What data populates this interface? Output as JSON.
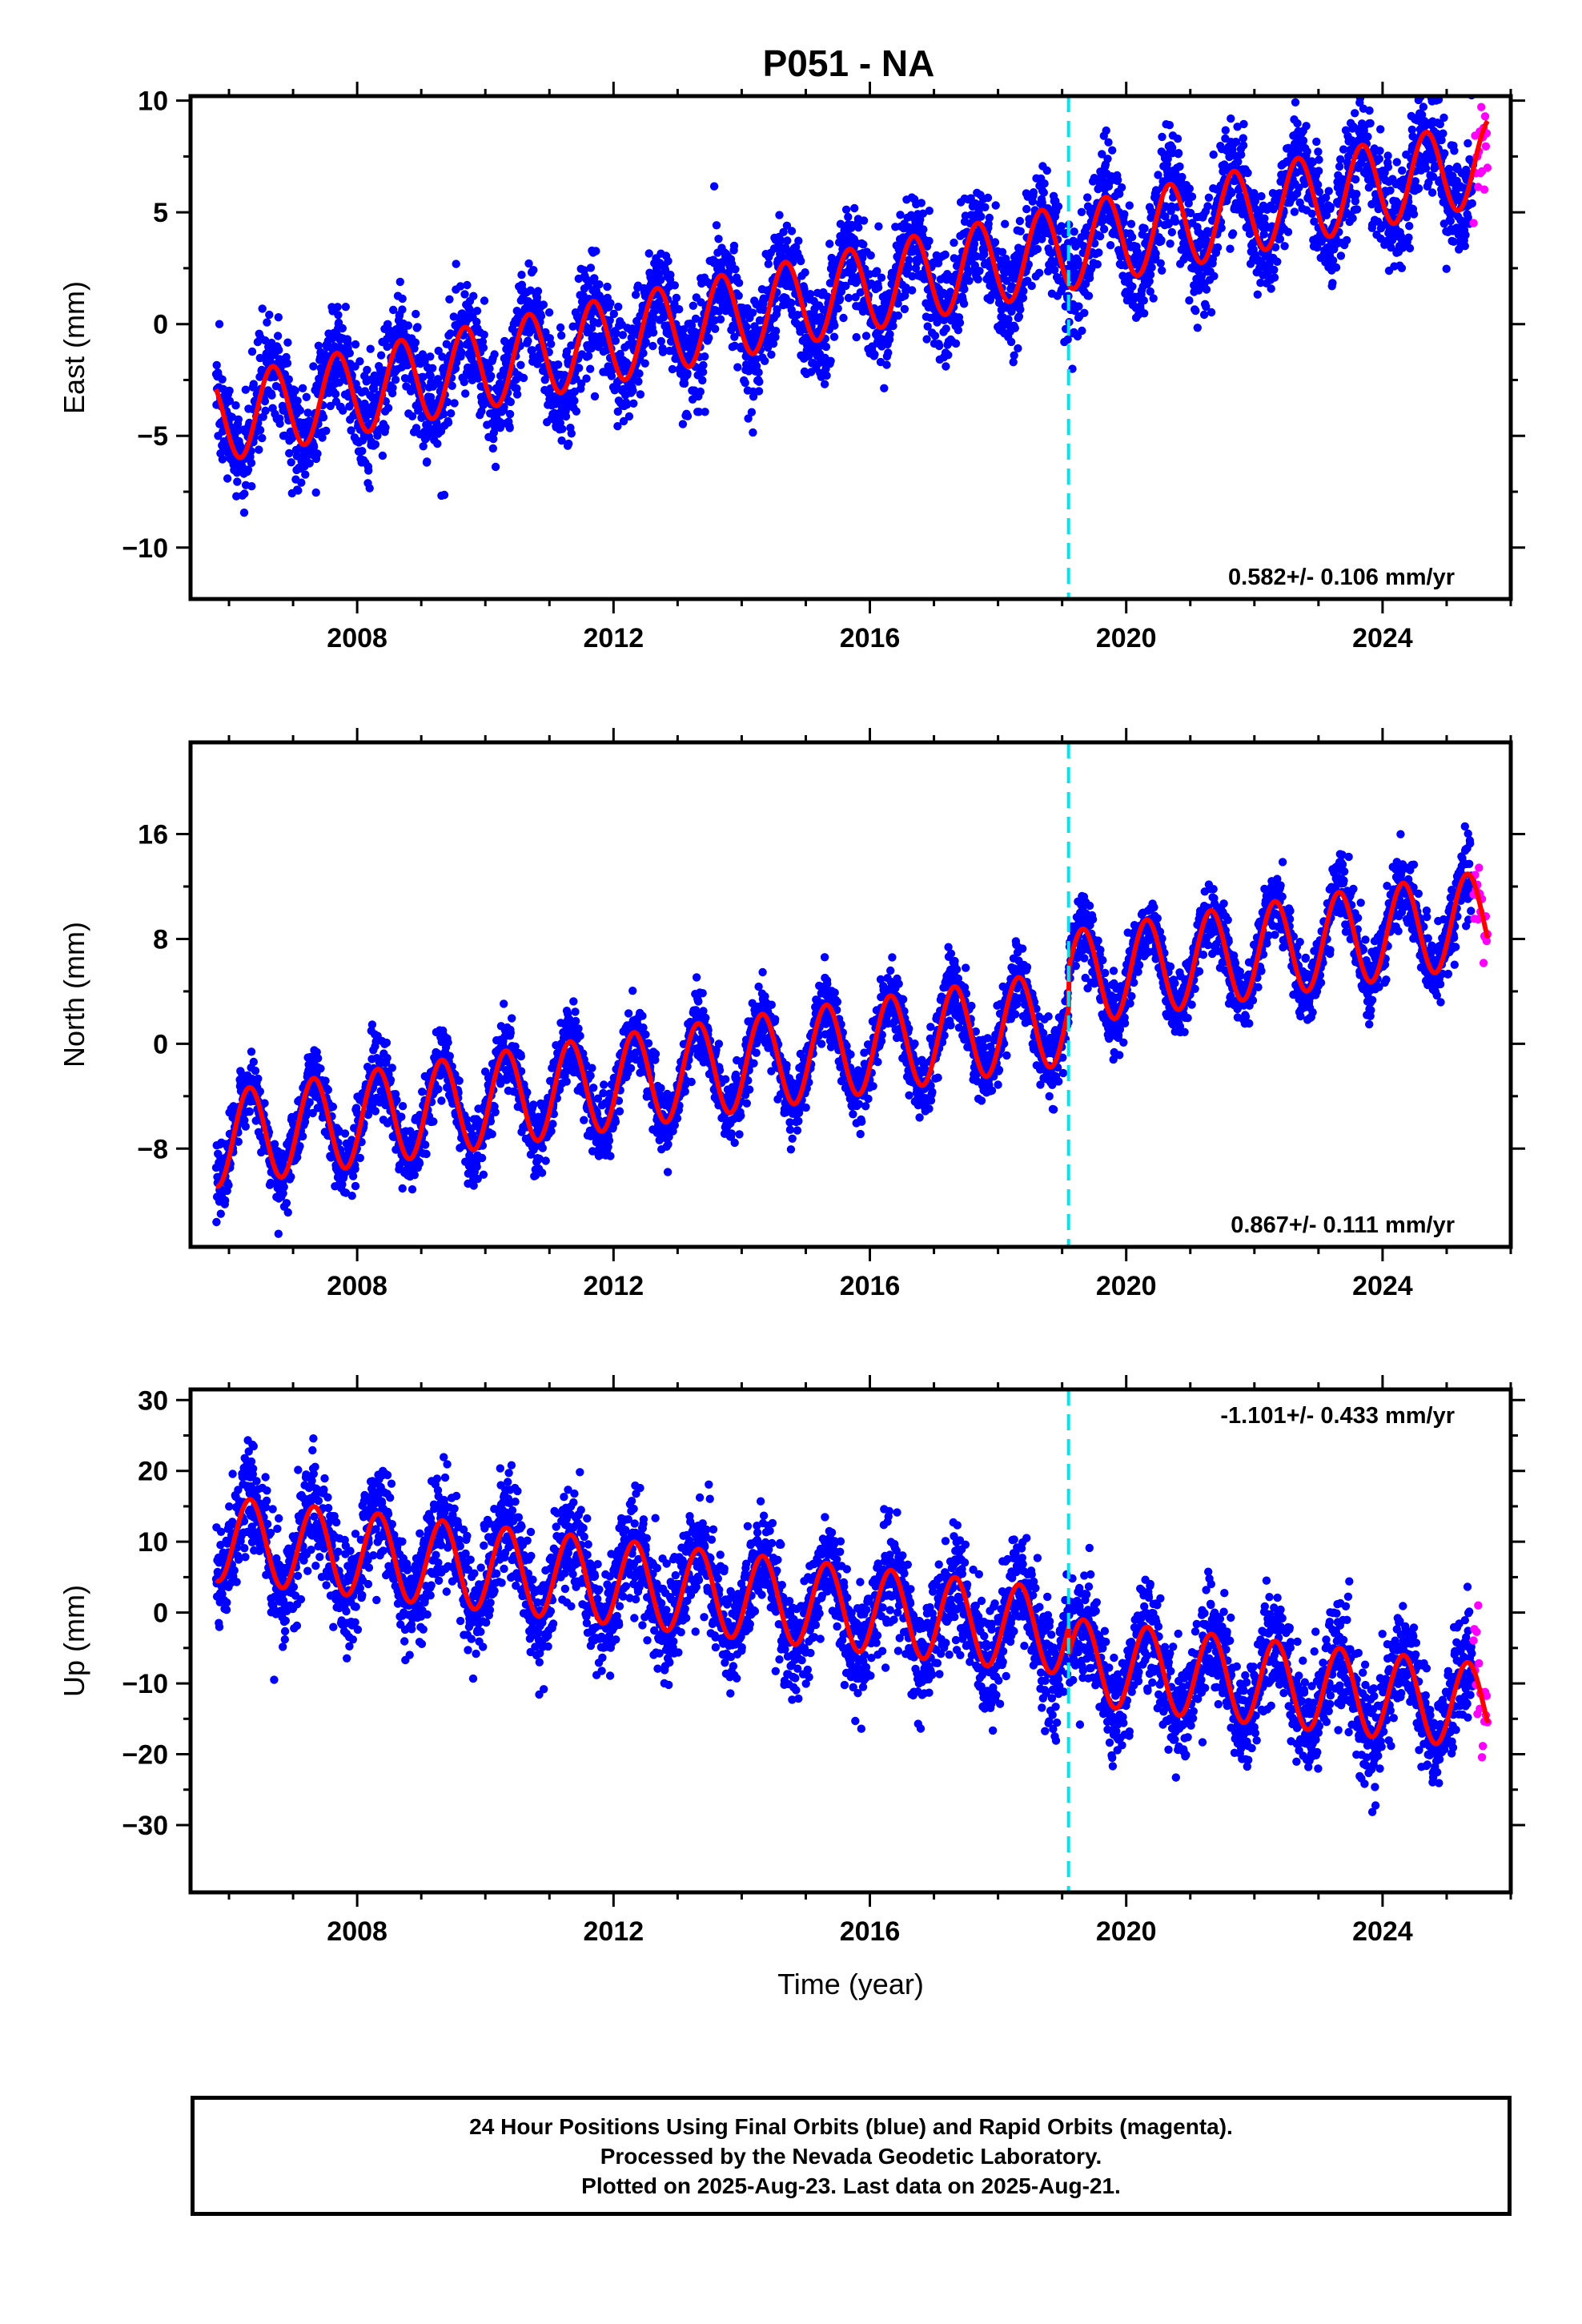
{
  "title": "P051 - NA",
  "xlabel": "Time (year)",
  "caption": {
    "line1": "24 Hour Positions Using Final Orbits (blue) and Rapid Orbits (magenta).",
    "line2": "Processed by the Nevada Geodetic Laboratory.",
    "line3": "Plotted on 2025-Aug-23. Last data on 2025-Aug-21."
  },
  "colors": {
    "final_orbits": "#0000ff",
    "rapid_orbits": "#ff00ff",
    "model_fit": "#ff0000",
    "equipment_change_line": "#00e5ee"
  },
  "chart_data": [
    {
      "type": "scatter",
      "panel": "east",
      "ylabel": "East (mm)",
      "rate_text": "0.582+/- 0.106 mm/yr",
      "rate_position": "bottom-right",
      "xlim": [
        2005.4,
        2026.0
      ],
      "ylim": [
        -12.3,
        10.2
      ],
      "xticks": [
        2008,
        2012,
        2016,
        2020,
        2024
      ],
      "yticks": [
        -10,
        -5,
        0,
        5,
        10
      ],
      "vline_x": 2019.1,
      "model": {
        "intercept": -4.3,
        "t0": 2005.8,
        "slope": 0.582,
        "amplitude": 1.9,
        "phase": 0.43
      },
      "series": [
        {
          "name": "Final Orbits",
          "color": "#0000ff",
          "x_range": [
            2005.8,
            2025.42
          ],
          "scatter_sd": 1.2
        },
        {
          "name": "Rapid Orbits",
          "color": "#ff00ff",
          "x_range": [
            2025.42,
            2025.64
          ],
          "scatter_sd": 1.2
        }
      ]
    },
    {
      "type": "scatter",
      "panel": "north",
      "ylabel": "North (mm)",
      "rate_text": "0.867+/- 0.111 mm/yr",
      "rate_position": "bottom-right",
      "xlim": [
        2005.4,
        2026.0
      ],
      "ylim": [
        -15.5,
        23
      ],
      "xticks": [
        2008,
        2012,
        2016,
        2020,
        2024
      ],
      "yticks": [
        -8,
        0,
        8,
        16
      ],
      "vline_x": 2019.1,
      "model": {
        "intercept": -7.3,
        "t0": 2005.8,
        "slope": 0.7,
        "amplitude": 3.6,
        "phase": 0.07,
        "offset_at": 2019.1,
        "offset": 3.0
      },
      "series": [
        {
          "name": "Final Orbits",
          "color": "#0000ff",
          "x_range": [
            2005.8,
            2025.42
          ],
          "scatter_sd": 1.3
        },
        {
          "name": "Rapid Orbits",
          "color": "#ff00ff",
          "x_range": [
            2025.42,
            2025.64
          ],
          "scatter_sd": 1.3
        }
      ]
    },
    {
      "type": "scatter",
      "panel": "up",
      "ylabel": "Up (mm)",
      "rate_text": "-1.101+/- 0.433 mm/yr",
      "rate_position": "top-right",
      "xlim": [
        2005.4,
        2026.0
      ],
      "ylim": [
        -39.5,
        31.5
      ],
      "xticks": [
        2008,
        2012,
        2016,
        2020,
        2024
      ],
      "yticks": [
        -30,
        -20,
        -10,
        0,
        10,
        20,
        30
      ],
      "vline_x": 2019.1,
      "model": {
        "intercept": 10.5,
        "t0": 2005.8,
        "slope": -1.0,
        "amplitude": 6.0,
        "phase": 0.08,
        "offset_at": 2019.1,
        "offset": -4.0
      },
      "series": [
        {
          "name": "Final Orbits",
          "color": "#0000ff",
          "x_range": [
            2005.8,
            2025.42
          ],
          "scatter_sd": 3.8
        },
        {
          "name": "Rapid Orbits",
          "color": "#ff00ff",
          "x_range": [
            2025.42,
            2025.64
          ],
          "scatter_sd": 4.5
        }
      ]
    }
  ]
}
